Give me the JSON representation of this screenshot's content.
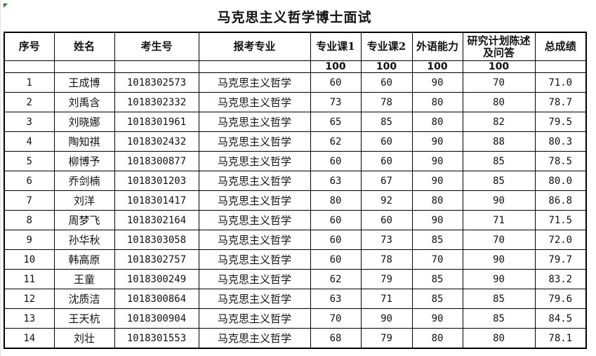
{
  "title": "马克思主义哲学博士面试",
  "headers": [
    "序号",
    "姓名",
    "考生号",
    "报考专业",
    "专业课1",
    "专业课2",
    "外语能力",
    "研究计划陈述及问答",
    "总成绩"
  ],
  "max_scores": [
    "",
    "",
    "",
    "",
    "100",
    "100",
    "100",
    "100",
    ""
  ],
  "rows": [
    [
      "1",
      "王成博",
      "1018302573",
      "马克思主义哲学",
      "60",
      "60",
      "90",
      "70",
      "71.0"
    ],
    [
      "2",
      "刘禹含",
      "1018302332",
      "马克思主义哲学",
      "73",
      "78",
      "80",
      "80",
      "78.7"
    ],
    [
      "3",
      "刘晓娜",
      "1018301961",
      "马克思主义哲学",
      "65",
      "85",
      "80",
      "82",
      "79.5"
    ],
    [
      "4",
      "陶知祺",
      "1018302432",
      "马克思主义哲学",
      "62",
      "60",
      "90",
      "88",
      "80.3"
    ],
    [
      "5",
      "柳博予",
      "1018300877",
      "马克思主义哲学",
      "60",
      "60",
      "90",
      "85",
      "78.5"
    ],
    [
      "6",
      "乔剑楠",
      "1018301203",
      "马克思主义哲学",
      "63",
      "67",
      "90",
      "85",
      "80.0"
    ],
    [
      "7",
      "刘洋",
      "1018301417",
      "马克思主义哲学",
      "80",
      "92",
      "80",
      "90",
      "86.8"
    ],
    [
      "8",
      "周梦飞",
      "1018302164",
      "马克思主义哲学",
      "60",
      "60",
      "90",
      "71",
      "71.5"
    ],
    [
      "9",
      "孙华秋",
      "1018303058",
      "马克思主义哲学",
      "60",
      "73",
      "85",
      "70",
      "72.0"
    ],
    [
      "10",
      "韩高原",
      "1018302757",
      "马克思主义哲学",
      "60",
      "78",
      "70",
      "90",
      "79.7"
    ],
    [
      "11",
      "王童",
      "1018300249",
      "马克思主义哲学",
      "62",
      "79",
      "85",
      "90",
      "83.2"
    ],
    [
      "12",
      "沈质洁",
      "1018300864",
      "马克思主义哲学",
      "63",
      "71",
      "85",
      "85",
      "79.6"
    ],
    [
      "13",
      "王天杭",
      "1018300904",
      "马克思主义哲学",
      "70",
      "90",
      "90",
      "85",
      "84.5"
    ],
    [
      "14",
      "刘壮",
      "1018301553",
      "马克思主义哲学",
      "68",
      "79",
      "80",
      "80",
      "78.1"
    ]
  ],
  "colors": {
    "border": "#000000",
    "gridline": "#e4e4e4",
    "cell_marker": "#1e7b34"
  }
}
